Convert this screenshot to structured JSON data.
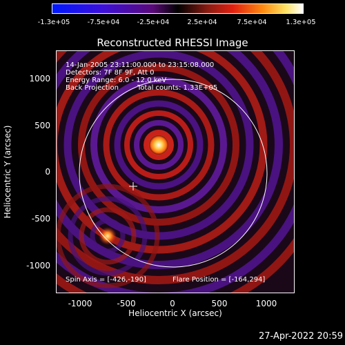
{
  "colorbar": {
    "ticks": [
      "-1.3e+05",
      "-7.5e+04",
      "-2.5e+04",
      "2.5e+04",
      "7.5e+04",
      "1.3e+05"
    ]
  },
  "plot": {
    "title": "Reconstructed RHESSI Image",
    "xlabel": "Heliocentric X (arcsec)",
    "ylabel": "Heliocentric Y (arcsec)",
    "xticks": [
      "-1000",
      "-500",
      "0",
      "500",
      "1000"
    ],
    "yticks": [
      "1000",
      "500",
      "0",
      "-500",
      "-1000"
    ],
    "annotations": {
      "time": "14-Jan-2005 23:11:00.000 to 23:15:08.000",
      "detectors": "Detectors: 7F 8F 9F, Att 0",
      "energy": "Energy Range: 6.0 - 12.0 keV",
      "method": "Back Projection",
      "counts": "Total counts: 1.33E+05",
      "spin_axis": "Spin Axis = [-426,-190]",
      "flare_position": "Flare Position = [-164,294]"
    }
  },
  "timestamp": "27-Apr-2022 20:59"
}
